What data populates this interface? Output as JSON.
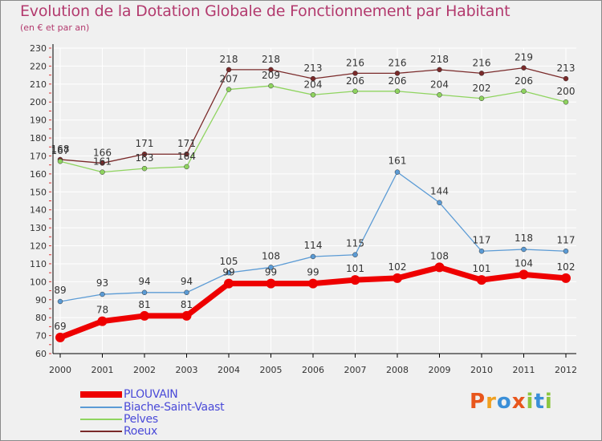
{
  "header": {
    "title": "Evolution de la Dotation Globale de Fonctionnement par Habitant",
    "subtitle": "(en € et par an)"
  },
  "colors": {
    "title": "#b33a6e",
    "axis": "#000000",
    "grid": "#ffffff",
    "plot_bg": "#f0f0f0",
    "tick_text": "#333333",
    "legend_text": "#4a4ad8"
  },
  "legend": {
    "items": [
      {
        "label": "PLOUVAIN",
        "color": "#ee0000"
      },
      {
        "label": "Biache-Saint-Vaast",
        "color": "#5b9bd5"
      },
      {
        "label": "Pelves",
        "color": "#8fd45f"
      },
      {
        "label": "Roeux",
        "color": "#7a2a2a"
      }
    ]
  },
  "logo": {
    "letters": [
      {
        "char": "P",
        "color": "#e8561c"
      },
      {
        "char": "r",
        "color": "#f0a020"
      },
      {
        "char": "o",
        "color": "#3a8fd8"
      },
      {
        "char": "x",
        "color": "#e8561c"
      },
      {
        "char": "i",
        "color": "#8cc63f"
      },
      {
        "char": "t",
        "color": "#3a8fd8"
      },
      {
        "char": "i",
        "color": "#8cc63f"
      }
    ]
  },
  "chart_data": {
    "type": "line",
    "title": "Evolution de la Dotation Globale de Fonctionnement par Habitant",
    "subtitle": "(en € et par an)",
    "x": [
      "2000",
      "2001",
      "2002",
      "2003",
      "2004",
      "2005",
      "2006",
      "2007",
      "2008",
      "2009",
      "2010",
      "2011",
      "2012"
    ],
    "ylim": [
      60,
      230
    ],
    "yticks": [
      60,
      70,
      80,
      90,
      100,
      110,
      120,
      130,
      140,
      150,
      160,
      170,
      180,
      190,
      200,
      210,
      220,
      230
    ],
    "grid": true,
    "legend_position": "bottom-left",
    "series": [
      {
        "name": "PLOUVAIN",
        "color": "#ee0000",
        "values": [
          69,
          78,
          81,
          81,
          99,
          99,
          99,
          101,
          102,
          108,
          101,
          104,
          102
        ]
      },
      {
        "name": "Biache-Saint-Vaast",
        "color": "#5b9bd5",
        "values": [
          89,
          93,
          94,
          94,
          105,
          108,
          114,
          115,
          161,
          144,
          117,
          118,
          117
        ]
      },
      {
        "name": "Pelves",
        "color": "#8fd45f",
        "values": [
          167,
          161,
          163,
          164,
          207,
          209,
          204,
          206,
          206,
          204,
          202,
          206,
          200
        ]
      },
      {
        "name": "Roeux",
        "color": "#7a2a2a",
        "values": [
          168,
          166,
          171,
          171,
          218,
          218,
          213,
          216,
          216,
          218,
          216,
          219,
          213
        ]
      }
    ]
  }
}
